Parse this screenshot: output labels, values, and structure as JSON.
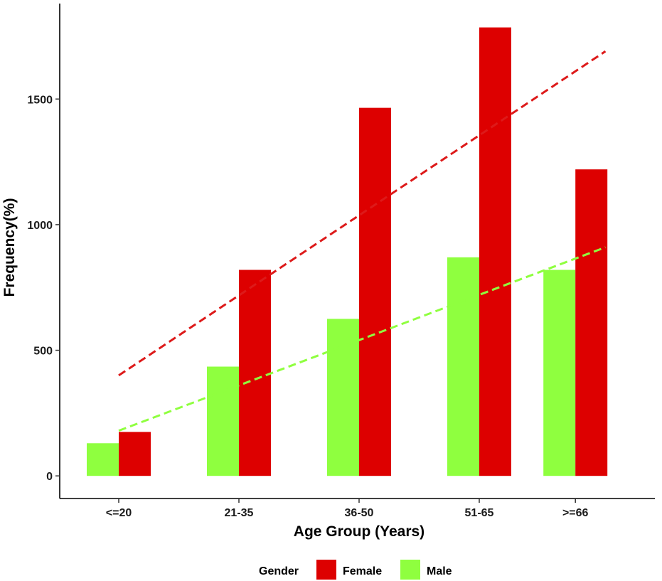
{
  "chart_data": {
    "type": "bar",
    "title": "",
    "xlabel": "Age Group (Years)",
    "ylabel": "Frequency(%)",
    "categories": [
      "<=20",
      "21-35",
      "36-50",
      "51-65",
      ">=66"
    ],
    "x_positions": [
      1,
      2,
      3,
      4,
      4.8
    ],
    "ylim": [
      -90,
      1880
    ],
    "yticks": [
      0,
      500,
      1000,
      1500
    ],
    "ytick_labels": [
      "0",
      "500",
      "1000",
      "1500"
    ],
    "series": [
      {
        "name": "Male",
        "color": "#8fff3f",
        "values": [
          130,
          435,
          625,
          870,
          820
        ]
      },
      {
        "name": "Female",
        "color": "#dd0000",
        "values": [
          175,
          820,
          1465,
          1785,
          1220
        ]
      }
    ],
    "trend_lines": [
      {
        "name": "Female trend",
        "color": "#dd1a1a",
        "dashed": true,
        "x_start": 1,
        "y_start": 400,
        "x_end": 5.05,
        "y_end": 1690
      },
      {
        "name": "Male trend",
        "color": "#8fff3f",
        "dashed": true,
        "x_start": 1,
        "y_start": 180,
        "x_end": 5.05,
        "y_end": 910
      }
    ],
    "legend": {
      "title": "Gender",
      "position": "bottom",
      "entries": [
        {
          "label": "Female",
          "color": "#dd0000"
        },
        {
          "label": "Male",
          "color": "#8fff3f"
        }
      ]
    }
  }
}
